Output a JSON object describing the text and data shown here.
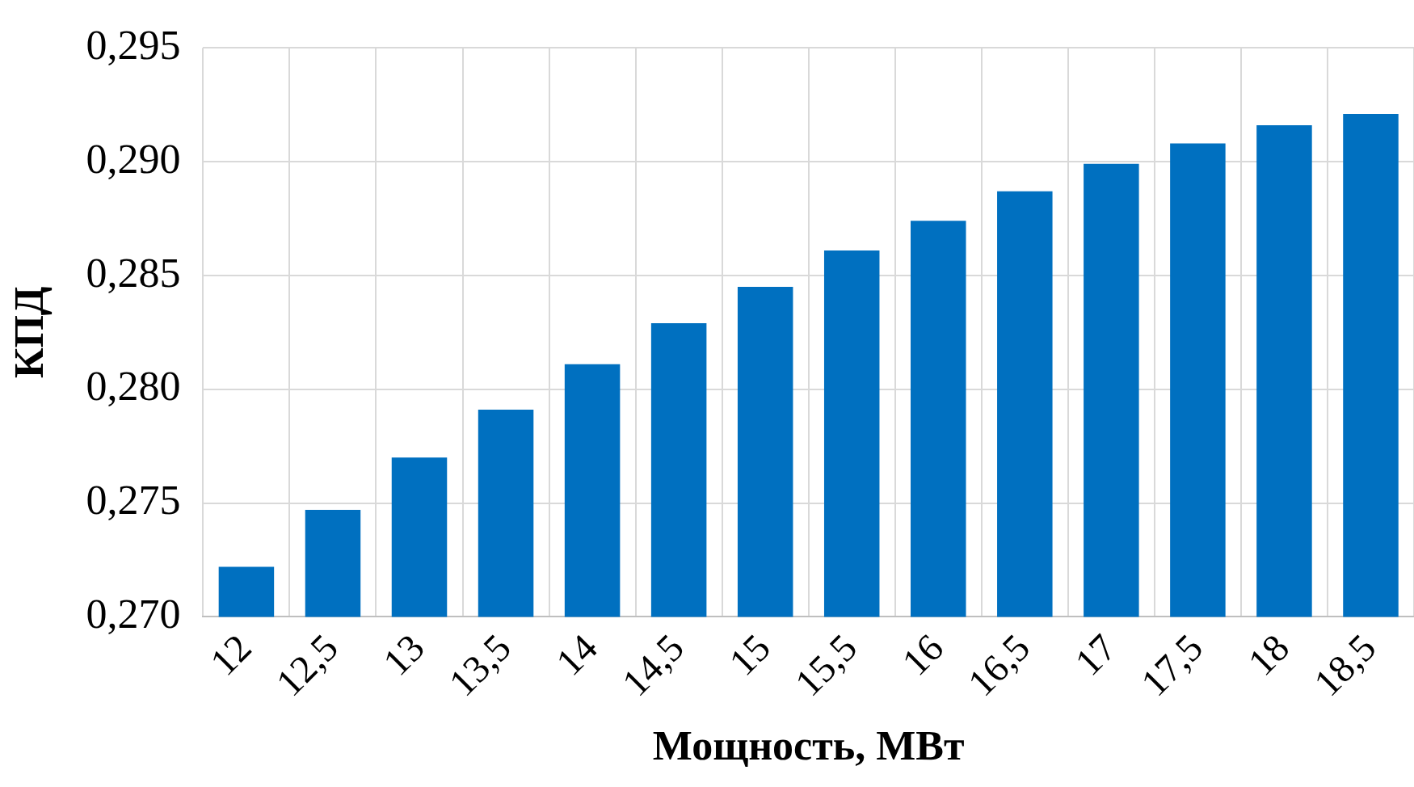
{
  "chart_data": {
    "type": "bar",
    "xlabel": "Мощность, МВт",
    "ylabel": "КПД",
    "categories": [
      "12",
      "12,5",
      "13",
      "13,5",
      "14",
      "14,5",
      "15",
      "15,5",
      "16",
      "16,5",
      "17",
      "17,5",
      "18",
      "18,5"
    ],
    "values": [
      0.2722,
      0.2747,
      0.277,
      0.2791,
      0.2811,
      0.2829,
      0.2845,
      0.2861,
      0.2874,
      0.2887,
      0.2899,
      0.2908,
      0.2916,
      0.2921
    ],
    "color": "#0070c0",
    "ylim": [
      0.27,
      0.295
    ],
    "yticks": [
      {
        "value": 0.27,
        "label": "0,270"
      },
      {
        "value": 0.275,
        "label": "0,275"
      },
      {
        "value": 0.28,
        "label": "0,280"
      },
      {
        "value": 0.285,
        "label": "0,285"
      },
      {
        "value": 0.29,
        "label": "0,290"
      },
      {
        "value": 0.295,
        "label": "0,295"
      }
    ],
    "grid": true,
    "legend": false
  }
}
